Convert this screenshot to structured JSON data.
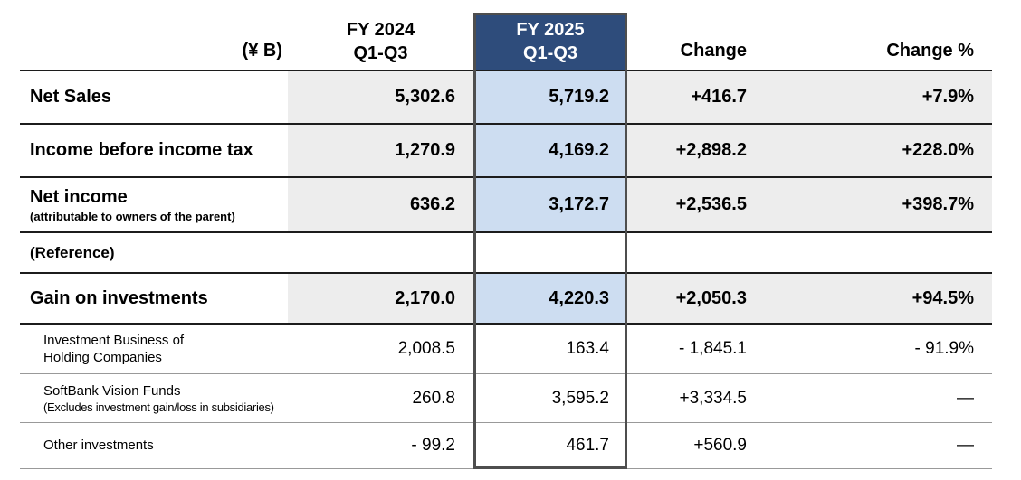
{
  "header": {
    "unit_label": "(¥ B)",
    "col_fy2024": "FY 2024\nQ1-Q3",
    "col_fy2025": "FY 2025\nQ1-Q3",
    "col_change": "Change",
    "col_change_pct": "Change %"
  },
  "colors": {
    "header_navy": "#2e4c7b",
    "fy2025_fill": "#cdddf1",
    "cell_gray": "#ededed",
    "column_border": "#4e4e4e"
  },
  "rows": [
    {
      "label": "Net Sales",
      "sublabel": "",
      "fy2024": "5,302.6",
      "fy2025": "5,719.2",
      "change": "+416.7",
      "change_pct": "+7.9%"
    },
    {
      "label": "Income before income tax",
      "sublabel": "",
      "fy2024": "1,270.9",
      "fy2025": "4,169.2",
      "change": "+2,898.2",
      "change_pct": "+228.0%"
    },
    {
      "label": "Net income",
      "sublabel": "(attributable to owners of the parent)",
      "fy2024": "636.2",
      "fy2025": "3,172.7",
      "change": "+2,536.5",
      "change_pct": "+398.7%"
    },
    {
      "label": "(Reference)",
      "sublabel": "",
      "fy2024": "",
      "fy2025": "",
      "change": "",
      "change_pct": ""
    },
    {
      "label": "Gain on investments",
      "sublabel": "",
      "fy2024": "2,170.0",
      "fy2025": "4,220.3",
      "change": "+2,050.3",
      "change_pct": "+94.5%"
    },
    {
      "label": "Investment Business of\nHolding Companies",
      "sublabel": "",
      "fy2024": "2,008.5",
      "fy2025": "163.4",
      "change": "- 1,845.1",
      "change_pct": "- 91.9%"
    },
    {
      "label": "SoftBank Vision Funds",
      "sublabel": "(Excludes investment gain/loss in subsidiaries)",
      "fy2024": "260.8",
      "fy2025": "3,595.2",
      "change": "+3,334.5",
      "change_pct": "—"
    },
    {
      "label": "Other investments",
      "sublabel": "",
      "fy2024": "- 99.2",
      "fy2025": "461.7",
      "change": "+560.9",
      "change_pct": "—"
    }
  ]
}
